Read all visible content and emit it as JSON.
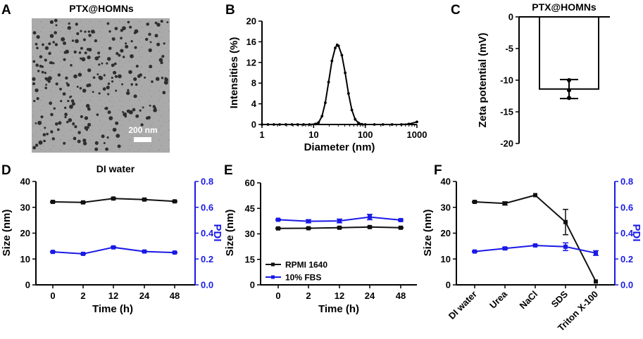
{
  "panel_labels": [
    "A",
    "B",
    "C",
    "D",
    "E",
    "F"
  ],
  "colors": {
    "black": "#111111",
    "blue": "#1a1ae6"
  },
  "tem_image": {
    "title": "PTX@HOMNs",
    "scale_bar": "200 nm",
    "description_icon": "tem-micrograph-icon"
  },
  "chart_data": [
    {
      "id": "B",
      "type": "line",
      "xscale": "log",
      "title": "",
      "xlabel": "Diameter (nm)",
      "ylabel": "Intensities (%)",
      "xlim": [
        1,
        1000
      ],
      "ylim": [
        0,
        20
      ],
      "xticks": [
        1,
        10,
        100,
        1000
      ],
      "xtick_labels": [
        "1",
        "10",
        "100",
        "1000"
      ],
      "yticks": [
        0,
        4,
        8,
        12,
        16,
        20
      ],
      "x": [
        1,
        1.3,
        1.7,
        2.2,
        2.9,
        3.8,
        4.9,
        6.4,
        8.3,
        10.8,
        12.5,
        14.5,
        16.8,
        19.5,
        22.6,
        26.2,
        28.5,
        30.4,
        35.2,
        40.8,
        47.3,
        54.9,
        63.7,
        73.9,
        85.7,
        100,
        150,
        220,
        330,
        500,
        700,
        1000
      ],
      "y": [
        0,
        0,
        0,
        0,
        0,
        0,
        0,
        0,
        0,
        0.1,
        0.4,
        1.6,
        4.2,
        8.2,
        12.3,
        14.8,
        15.4,
        15.2,
        13.4,
        10.0,
        6.0,
        2.8,
        1.0,
        0.3,
        0.05,
        0,
        0,
        0,
        0,
        0,
        0.1,
        0.5
      ]
    },
    {
      "id": "C",
      "type": "bar",
      "title": "PTX@HOMNs",
      "xlabel": "",
      "ylabel": "Zeta potential (mV)",
      "ylim": [
        -20,
        0
      ],
      "yticks": [
        0,
        -5,
        -10,
        -15,
        -20
      ],
      "categories": [
        "PTX@HOMNs"
      ],
      "values": [
        -11.4
      ],
      "error": [
        1.5
      ],
      "points": [
        -10.0,
        -11.6,
        -12.8
      ]
    },
    {
      "id": "D",
      "type": "line",
      "title": "DI water",
      "xlabel": "Time (h)",
      "ylabel": "Size (nm)",
      "y2label": "PDI",
      "categories": [
        "0",
        "2",
        "12",
        "24",
        "48"
      ],
      "ylim": [
        0,
        40
      ],
      "yticks": [
        0,
        10,
        20,
        30,
        40
      ],
      "y2lim": [
        0.0,
        0.8
      ],
      "y2ticks": [
        "0.0",
        "0.2",
        "0.4",
        "0.6",
        "0.8"
      ],
      "series": [
        {
          "name": "Size",
          "axis": "left",
          "color": "#111111",
          "values": [
            32.1,
            31.9,
            33.4,
            33.0,
            32.3
          ],
          "error": [
            0.2,
            0.2,
            0.2,
            0.2,
            0.2
          ]
        },
        {
          "name": "PDI",
          "axis": "right",
          "color": "#1a1ae6",
          "values": [
            0.255,
            0.24,
            0.29,
            0.258,
            0.25
          ],
          "error": [
            0.004,
            0.004,
            0.006,
            0.004,
            0.004
          ]
        }
      ]
    },
    {
      "id": "E",
      "type": "line",
      "title": "",
      "xlabel": "Time (h)",
      "ylabel": "Size (nm)",
      "categories": [
        "0",
        "2",
        "12",
        "24",
        "48"
      ],
      "ylim": [
        0,
        60
      ],
      "yticks": [
        0,
        15,
        30,
        45,
        60
      ],
      "legend_position": "bottom-left",
      "series": [
        {
          "name": "RPMI 1640",
          "color": "#111111",
          "values": [
            33.2,
            33.3,
            33.6,
            34.0,
            33.6
          ],
          "error": [
            0.3,
            0.3,
            0.3,
            0.3,
            0.3
          ]
        },
        {
          "name": "10% FBS",
          "color": "#1a1ae6",
          "values": [
            38.3,
            37.4,
            37.6,
            39.9,
            38.1
          ],
          "error": [
            0.4,
            0.9,
            1.1,
            1.6,
            0.5
          ]
        }
      ]
    },
    {
      "id": "F",
      "type": "line",
      "title": "",
      "xlabel": "",
      "ylabel": "Size (nm)",
      "y2label": "PDI",
      "categories": [
        "DI water",
        "Urea",
        "NaCl",
        "SDS",
        "Triton X-100"
      ],
      "ylim": [
        0,
        40
      ],
      "yticks": [
        0,
        10,
        20,
        30,
        40
      ],
      "y2lim": [
        0.0,
        0.8
      ],
      "y2ticks": [
        "0.0",
        "0.2",
        "0.4",
        "0.6",
        "0.8"
      ],
      "series": [
        {
          "name": "Size",
          "axis": "left",
          "color": "#111111",
          "values": [
            32.1,
            31.5,
            34.7,
            24.3,
            1.3
          ],
          "error": [
            0.2,
            0.6,
            0,
            4.9,
            0
          ]
        },
        {
          "name": "PDI",
          "axis": "right",
          "color": "#1a1ae6",
          "values": [
            0.258,
            0.282,
            0.305,
            0.295,
            0.246
          ],
          "error": [
            0.004,
            0.008,
            0.004,
            0.03,
            0.018
          ]
        }
      ]
    }
  ]
}
